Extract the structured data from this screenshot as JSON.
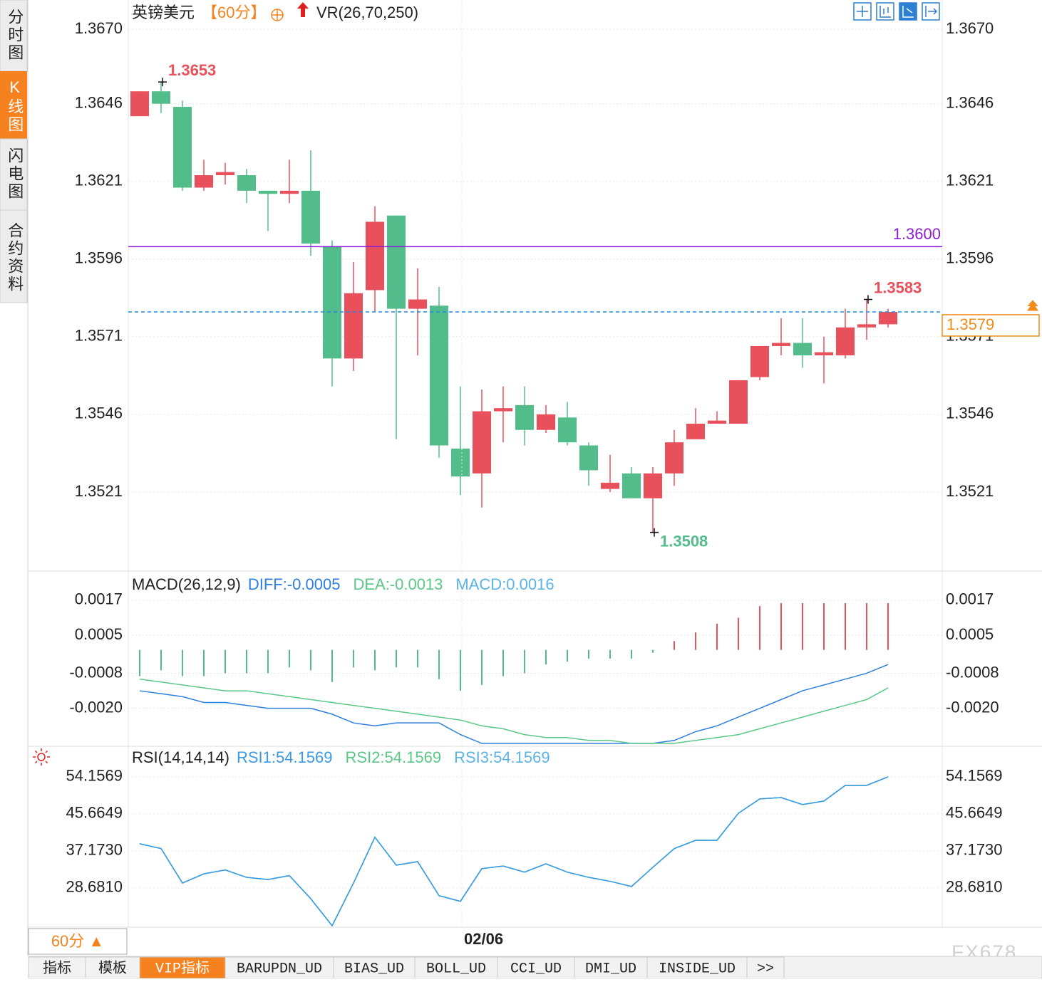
{
  "chart_data": [
    {
      "type": "candlestick",
      "title": "英镑美元",
      "period": "【60分】",
      "indicator": "VR(26,70,250)",
      "categories": [
        null,
        null,
        null,
        null,
        null,
        null,
        null,
        null,
        null,
        null,
        null,
        null,
        null,
        null,
        null,
        "02/06",
        null,
        null,
        null,
        null,
        null,
        null,
        null,
        null,
        null,
        null,
        null,
        null,
        null,
        null,
        null,
        null,
        null,
        null,
        null,
        null
      ],
      "open": [
        1.3642,
        1.365,
        1.3645,
        1.3619,
        1.3623,
        1.3623,
        1.3618,
        1.3617,
        1.3618,
        1.36,
        1.3564,
        1.3586,
        1.361,
        1.358,
        1.3581,
        1.3535,
        1.3527,
        1.3547,
        1.3549,
        1.3541,
        1.3545,
        1.3536,
        1.3522,
        1.3527,
        1.3519,
        1.3527,
        1.3538,
        1.3543,
        1.3543,
        1.3558,
        1.3568,
        1.3569,
        1.3565,
        1.3565,
        1.3574,
        1.3575
      ],
      "high": [
        1.365,
        1.3653,
        1.3647,
        1.3628,
        1.3627,
        1.3625,
        1.3618,
        1.3628,
        1.3631,
        1.3602,
        1.3595,
        1.3613,
        1.361,
        1.3593,
        1.3587,
        1.3555,
        1.3554,
        1.3555,
        1.3555,
        1.3549,
        1.355,
        1.3537,
        1.3533,
        1.3529,
        1.3529,
        1.3541,
        1.3548,
        1.3547,
        1.3557,
        1.3568,
        1.3577,
        1.3577,
        1.3571,
        1.358,
        1.3583,
        1.358
      ],
      "low": [
        1.3642,
        1.3643,
        1.3618,
        1.3618,
        1.362,
        1.3614,
        1.3605,
        1.3614,
        1.3597,
        1.3555,
        1.356,
        1.3579,
        1.3538,
        1.3565,
        1.3532,
        1.352,
        1.3516,
        1.3537,
        1.3536,
        1.354,
        1.3536,
        1.3523,
        1.3521,
        1.3519,
        1.3508,
        1.3523,
        1.3538,
        1.3543,
        1.3543,
        1.3557,
        1.3565,
        1.3561,
        1.3556,
        1.3564,
        1.357,
        1.3574
      ],
      "close": [
        1.365,
        1.3646,
        1.3619,
        1.3623,
        1.3624,
        1.3618,
        1.3617,
        1.3618,
        1.3601,
        1.3564,
        1.3585,
        1.3608,
        1.358,
        1.3583,
        1.3536,
        1.3526,
        1.3547,
        1.3548,
        1.3541,
        1.3546,
        1.3537,
        1.3528,
        1.3524,
        1.3519,
        1.3527,
        1.3537,
        1.3543,
        1.3544,
        1.3557,
        1.3568,
        1.3569,
        1.3565,
        1.3566,
        1.3574,
        1.3575,
        1.3579
      ],
      "up_color": "#e8505b",
      "down_color": "#52bd8a",
      "ylim": [
        1.3496,
        1.367
      ],
      "yticks": [
        {
          "value": 1.367,
          "label": "1.3670"
        },
        1.3646,
        1.3621,
        1.3596,
        1.3571,
        1.3546,
        1.3521
      ],
      "grid": true,
      "reference_line": {
        "value": 1.36,
        "label": "1.3600",
        "color": "#8b1fd6"
      },
      "last_price": 1.3579,
      "last_price_line_color": "#1e88e5",
      "last_price_box_color": "#f08c1a",
      "annotations": [
        {
          "value": 1.3653,
          "of": "high"
        },
        {
          "value": 1.3583,
          "of": "high"
        },
        {
          "value": 1.3508,
          "of": "low"
        }
      ]
    },
    {
      "type": "macd",
      "title": "MACD(26,12,9)",
      "ylim": [
        -0.0033,
        0.0026
      ],
      "yticks": [
        0.0017,
        0.0005,
        -0.0008,
        {
          "value": -0.002,
          "label": "-0.0020"
        }
      ],
      "series": [
        {
          "name": "DIFF:-0.0005",
          "color": "#2f7fe0",
          "values": [
            -0.0014,
            -0.0015,
            -0.0016,
            -0.0018,
            -0.0018,
            -0.0019,
            -0.002,
            -0.002,
            -0.002,
            -0.0022,
            -0.0025,
            -0.0026,
            -0.0025,
            -0.0025,
            -0.0025,
            -0.0029,
            -0.0032,
            -0.0032,
            -0.0032,
            -0.0032,
            -0.0032,
            -0.0032,
            -0.0032,
            -0.0032,
            -0.0032,
            -0.0031,
            -0.0028,
            -0.0026,
            -0.0023,
            -0.002,
            -0.0017,
            -0.0014,
            -0.0012,
            -0.001,
            -0.0008,
            -0.0005
          ]
        },
        {
          "name": "DEA:-0.0013",
          "color": "#5cc887",
          "values": [
            -0.001,
            -0.0011,
            -0.0012,
            -0.0013,
            -0.0014,
            -0.0014,
            -0.0015,
            -0.0016,
            -0.0017,
            -0.0018,
            -0.0019,
            -0.002,
            -0.0021,
            -0.0022,
            -0.0023,
            -0.0024,
            -0.0026,
            -0.0027,
            -0.0029,
            -0.003,
            -0.003,
            -0.0031,
            -0.0031,
            -0.0032,
            -0.0032,
            -0.0032,
            -0.0031,
            -0.003,
            -0.0029,
            -0.0027,
            -0.0025,
            -0.0023,
            -0.0021,
            -0.0019,
            -0.0017,
            -0.0013
          ]
        },
        {
          "name": "MACD:0.0016",
          "color": "#5ab4e8",
          "type": "bar",
          "up_color": "#e8505b",
          "down_color": "#52bd8a",
          "values": [
            -0.0009,
            -0.0007,
            -0.0009,
            -0.0009,
            -0.0008,
            -0.0008,
            -0.0008,
            -0.0006,
            -0.0007,
            -0.0011,
            -0.0006,
            -0.0007,
            -0.0006,
            -0.0006,
            -0.001,
            -0.0014,
            -0.0012,
            -0.0009,
            -0.0008,
            -0.0005,
            -0.0004,
            -0.0003,
            -0.0003,
            -0.0003,
            -0.0001,
            0.0003,
            0.0006,
            0.0009,
            0.0011,
            0.0015,
            0.0016,
            0.0016,
            0.0016,
            0.0016,
            0.0016,
            0.0016
          ]
        }
      ]
    },
    {
      "type": "line",
      "title": "RSI(14,14,14)",
      "ylim": [
        20,
        61
      ],
      "yticks": [
        54.1569,
        45.6649,
        {
          "value": 37.173,
          "label": "37.1730"
        },
        {
          "value": 28.681,
          "label": "28.6810"
        }
      ],
      "series": [
        {
          "name": "RSI1:54.1569",
          "color": "#3a9be8",
          "values": [
            38.8,
            37.7,
            29.8,
            31.9,
            32.8,
            31.1,
            30.6,
            31.5,
            26.2,
            20.0,
            29.8,
            40.3,
            33.9,
            34.7,
            26.9,
            25.6,
            33.1,
            33.7,
            32.3,
            34.2,
            32.3,
            31.1,
            30.2,
            29.0,
            33.4,
            37.7,
            39.6,
            39.6,
            45.8,
            49.1,
            49.4,
            47.8,
            48.6,
            52.2,
            52.2,
            54.1569
          ]
        },
        {
          "name": "RSI2:54.1569",
          "color": "#5cc887",
          "values": [
            38.8,
            37.7,
            29.8,
            31.9,
            32.8,
            31.1,
            30.6,
            31.5,
            26.2,
            20.0,
            29.8,
            40.3,
            33.9,
            34.7,
            26.9,
            25.6,
            33.1,
            33.7,
            32.3,
            34.2,
            32.3,
            31.1,
            30.2,
            29.0,
            33.4,
            37.7,
            39.6,
            39.6,
            45.8,
            49.1,
            49.4,
            47.8,
            48.6,
            52.2,
            52.2,
            54.1569
          ]
        },
        {
          "name": "RSI3:54.1569",
          "color": "#5ab4e8",
          "values": [
            38.8,
            37.7,
            29.8,
            31.9,
            32.8,
            31.1,
            30.6,
            31.5,
            26.2,
            20.0,
            29.8,
            40.3,
            33.9,
            34.7,
            26.9,
            25.6,
            33.1,
            33.7,
            32.3,
            34.2,
            32.3,
            31.1,
            30.2,
            29.0,
            33.4,
            37.7,
            39.6,
            39.6,
            45.8,
            49.1,
            49.4,
            47.8,
            48.6,
            52.2,
            52.2,
            54.1569
          ]
        }
      ]
    }
  ],
  "ui": {
    "sidebar_tabs": [
      "分时图",
      "K线图",
      "闪电图",
      "合约资料"
    ],
    "period_selector": "60分 ▲",
    "bottom_tabs": [
      "指标",
      "模板",
      "VIP指标",
      "BARUPDN_UD",
      "BIAS_UD",
      "BOLL_UD",
      "CCI_UD",
      "DMI_UD",
      "INSIDE_UD",
      ">>"
    ],
    "watermark": "FX678"
  }
}
